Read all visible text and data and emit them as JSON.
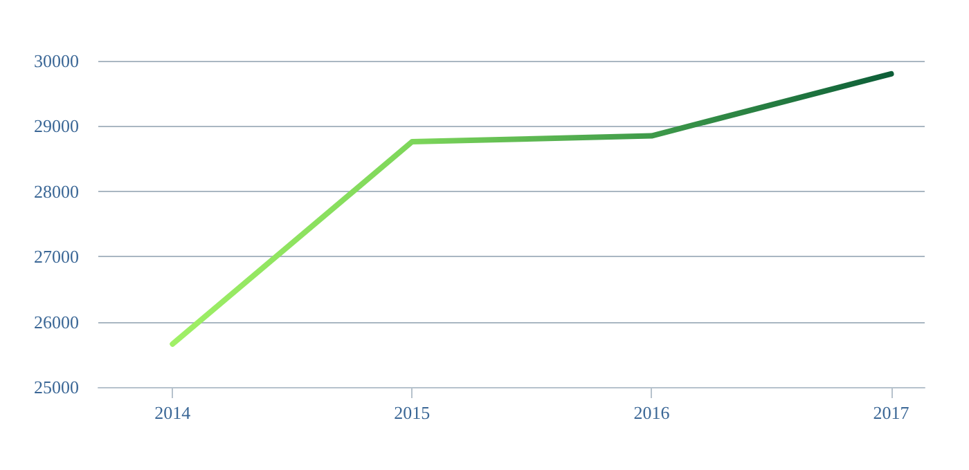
{
  "chart_data": {
    "type": "line",
    "x": [
      2014,
      2015,
      2016,
      2017
    ],
    "series": [
      {
        "values": [
          25660,
          28760,
          28850,
          29800
        ],
        "colors": [
          "#a0f066",
          "#7dd65a",
          "#3e9a4a",
          "#0d5e38"
        ]
      }
    ],
    "xlim": [
      2013.69,
      2017.14
    ],
    "xticks": [
      2014,
      2015,
      2016,
      2017
    ],
    "ylim": [
      25000,
      30000
    ],
    "yticks": [
      25000,
      26000,
      27000,
      28000,
      29000,
      30000
    ],
    "grid": "y",
    "marker": "none",
    "line_style": "solid"
  }
}
